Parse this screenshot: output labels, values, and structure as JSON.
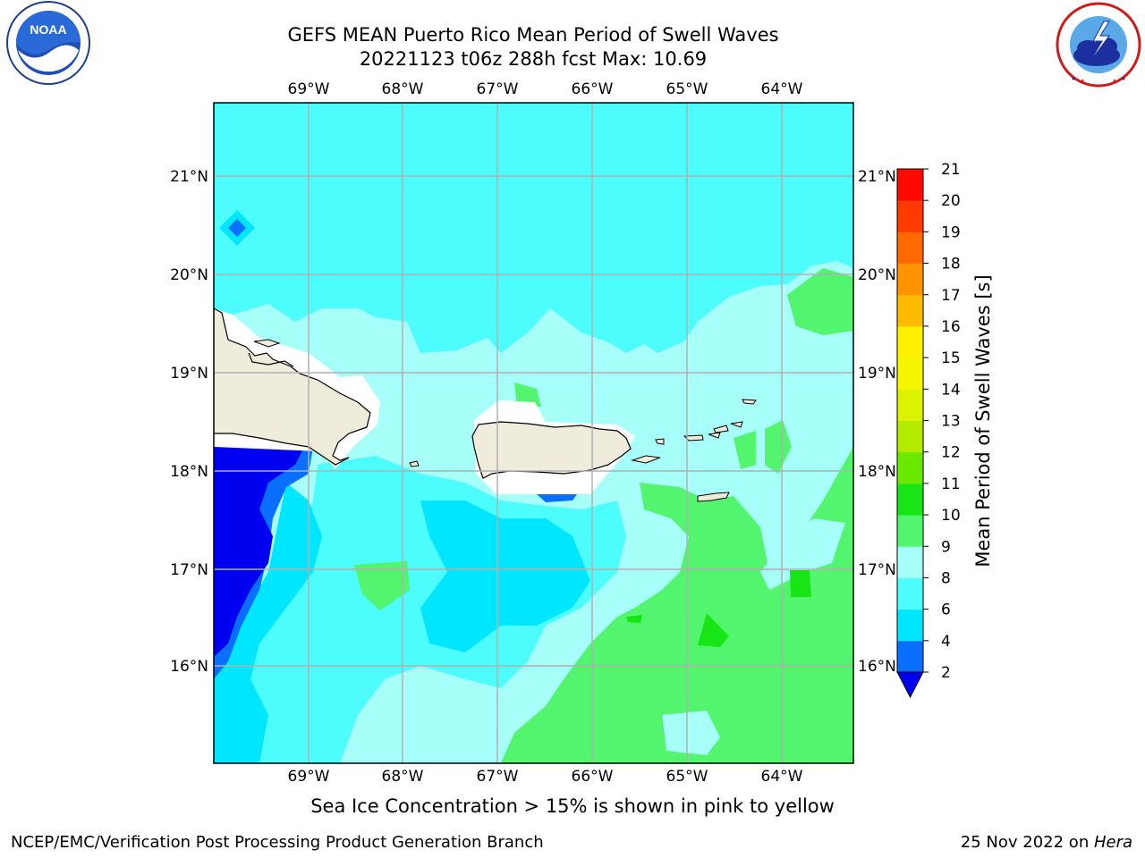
{
  "title_line1": "GEFS MEAN Puerto Rico Mean Period of Swell Waves",
  "title_line2": "20221123 t06z 288h fcst   Max: 10.69",
  "lon_labels": [
    "69°W",
    "68°W",
    "67°W",
    "66°W",
    "65°W",
    "64°W"
  ],
  "lat_labels": [
    "21°N",
    "20°N",
    "19°N",
    "18°N",
    "17°N",
    "16°N"
  ],
  "colorbar": {
    "label": "Mean Period of Swell Waves [s]",
    "ticks": [
      "2",
      "4",
      "6",
      "8",
      "9",
      "10",
      "11",
      "12",
      "13",
      "14",
      "15",
      "16",
      "17",
      "18",
      "19",
      "20",
      "21"
    ],
    "colors": [
      "#0a6eff",
      "#00e6ff",
      "#4dfdfd",
      "#a6fff9",
      "#52f56d",
      "#17e516",
      "#6ae800",
      "#b3ea00",
      "#dcf300",
      "#f5f500",
      "#fff000",
      "#ffbb00",
      "#ff9400",
      "#ff6a00",
      "#ff3a00",
      "#ff0a00"
    ],
    "under_color": "#0000f0"
  },
  "field_colors": {
    "2-4": "#0000f0",
    "4-6": "#0a6eff",
    "6-8": "#00e6ff",
    "8-9": "#4dfdfd",
    "9-10": "#a6fff9",
    "10-11": "#52f56d",
    "11-12": "#17e516",
    "land": "#efecdc",
    "coast": "#000000",
    "grid": "#b0b0b0"
  },
  "note": "Sea Ice Concentration > 15% is shown in pink to yellow",
  "footer_left": "NCEP/EMC/Verification Post Processing Product Generation Branch",
  "footer_date": "25 Nov 2022 on ",
  "footer_host": "Hera",
  "logos": {
    "noaa_text": "NOAA",
    "noaa_ring": "NATIONAL OCEANIC AND ATMOSPHERIC ADMINISTRATION · U.S. DEPARTMENT OF COMMERCE",
    "nws_ring": "NATIONAL WEATHER SERVICE"
  }
}
